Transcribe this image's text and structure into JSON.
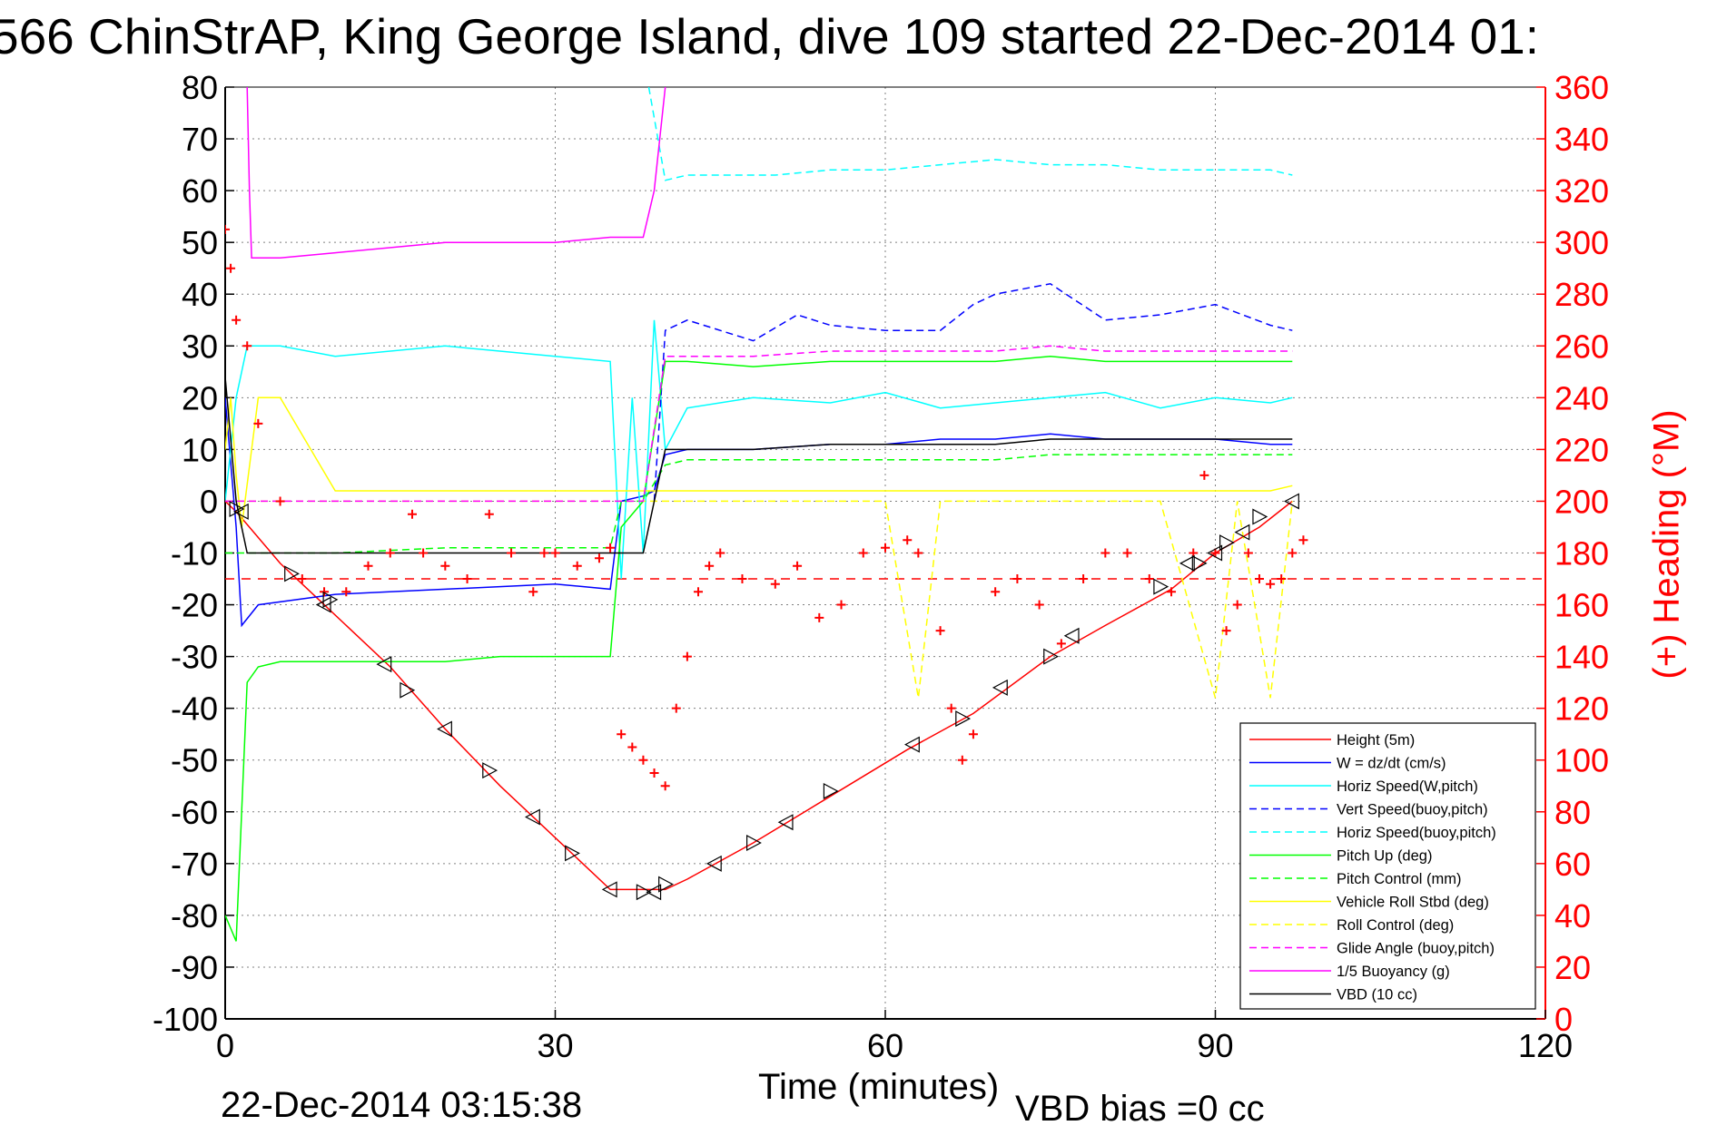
{
  "header": {
    "title": "566 ChinStrAP, King George Island, dive 109 started 22-Dec-2014 01:"
  },
  "footer": {
    "timestamp": "22-Dec-2014 03:15:38",
    "vbd_bias": "VBD bias =0 cc"
  },
  "colors": {
    "axis": "#000000",
    "right_axis": "#ff0000",
    "grid": "#808080"
  },
  "chart_data": {
    "type": "line",
    "xlabel": "Time (minutes)",
    "ylabel": "",
    "y2label": "(+) Heading (°M)",
    "xlim": [
      0,
      120
    ],
    "ylim": [
      -100,
      80
    ],
    "y2lim": [
      0,
      360
    ],
    "xticks": [
      0,
      30,
      60,
      90,
      120
    ],
    "yticks": [
      80,
      70,
      60,
      50,
      40,
      30,
      20,
      10,
      0,
      -10,
      -20,
      -30,
      -40,
      -50,
      -60,
      -70,
      -80,
      -90,
      -100
    ],
    "y2ticks": [
      360,
      340,
      320,
      300,
      280,
      260,
      240,
      220,
      200,
      180,
      160,
      140,
      120,
      100,
      80,
      60,
      40,
      20,
      0
    ],
    "grid": true,
    "legend_position": "bottom-right",
    "series": [
      {
        "name": "Height (5m)",
        "color": "#ff0000",
        "style": "solid",
        "x": [
          0,
          1,
          5,
          9,
          15,
          20,
          25,
          30,
          35,
          38,
          40,
          42,
          48,
          55,
          62,
          68,
          75,
          80,
          86,
          90,
          94,
          97
        ],
        "y": [
          0,
          -2,
          -12,
          -20,
          -32,
          -44,
          -55,
          -65,
          -75,
          -75,
          -75,
          -73,
          -66,
          -57,
          -48,
          -41,
          -30,
          -24,
          -17,
          -10,
          -5,
          0
        ]
      },
      {
        "name": "W = dz/dt (cm/s)",
        "color": "#0000ff",
        "style": "solid",
        "x": [
          0,
          1,
          1.5,
          3,
          10,
          20,
          30,
          35,
          36,
          38,
          39,
          40,
          42,
          48,
          55,
          60,
          65,
          70,
          75,
          80,
          85,
          90,
          95,
          97
        ],
        "y": [
          20,
          -5,
          -24,
          -20,
          -18,
          -17,
          -16,
          -17,
          0,
          1,
          2,
          9,
          10,
          10,
          11,
          11,
          12,
          12,
          13,
          12,
          12,
          12,
          11,
          11
        ]
      },
      {
        "name": "Horiz Speed(W,pitch)",
        "color": "#00ffff",
        "style": "solid",
        "x": [
          0,
          1,
          2,
          5,
          10,
          20,
          30,
          35,
          36,
          37,
          38,
          39,
          40,
          42,
          48,
          55,
          60,
          65,
          70,
          75,
          80,
          85,
          90,
          95,
          97
        ],
        "y": [
          0,
          20,
          30,
          30,
          28,
          30,
          28,
          27,
          -15,
          20,
          -10,
          35,
          10,
          18,
          20,
          19,
          21,
          18,
          19,
          20,
          21,
          18,
          20,
          19,
          20
        ]
      },
      {
        "name": "Vert Speed(buoy,pitch)",
        "color": "#0000ff",
        "style": "dashed",
        "x": [
          39,
          40,
          42,
          48,
          52,
          55,
          60,
          65,
          68,
          70,
          75,
          80,
          85,
          90,
          95,
          97
        ],
        "y": [
          0,
          33,
          35,
          31,
          36,
          34,
          33,
          33,
          38,
          40,
          42,
          35,
          36,
          38,
          34,
          33
        ]
      },
      {
        "name": "Horiz Speed(buoy,pitch)",
        "color": "#00ffff",
        "style": "dashed",
        "x": [
          38.5,
          40,
          42,
          50,
          55,
          60,
          65,
          70,
          75,
          80,
          85,
          90,
          95,
          97
        ],
        "y": [
          80,
          62,
          63,
          63,
          64,
          64,
          65,
          66,
          65,
          65,
          64,
          64,
          64,
          63
        ]
      },
      {
        "name": "Pitch Up (deg)",
        "color": "#00ff00",
        "style": "solid",
        "x": [
          0,
          1,
          2,
          3,
          5,
          10,
          15,
          20,
          25,
          30,
          35,
          36,
          38,
          40,
          42,
          48,
          55,
          60,
          65,
          70,
          75,
          80,
          85,
          90,
          95,
          97
        ],
        "y": [
          -80,
          -85,
          -35,
          -32,
          -31,
          -31,
          -31,
          -31,
          -30,
          -30,
          -30,
          -5,
          0,
          27,
          27,
          26,
          27,
          27,
          27,
          27,
          28,
          27,
          27,
          27,
          27,
          27
        ]
      },
      {
        "name": "Pitch Control (mm)",
        "color": "#00ff00",
        "style": "dashed",
        "x": [
          0,
          2,
          10,
          20,
          30,
          35,
          36,
          38,
          40,
          42,
          48,
          55,
          60,
          65,
          70,
          75,
          80,
          85,
          90,
          95,
          97
        ],
        "y": [
          -10,
          -10,
          -10,
          -9,
          -9,
          -9,
          0,
          0,
          7,
          8,
          8,
          8,
          8,
          8,
          8,
          9,
          9,
          9,
          9,
          9,
          9
        ]
      },
      {
        "name": "Vehicle Roll Stbd (deg)",
        "color": "#ffff00",
        "style": "solid",
        "x": [
          0,
          0.5,
          1,
          1.5,
          3,
          5,
          10,
          15,
          20,
          25,
          30,
          35,
          38,
          40,
          45,
          50,
          55,
          60,
          65,
          70,
          75,
          80,
          85,
          90,
          95,
          97
        ],
        "y": [
          10,
          20,
          5,
          -5,
          20,
          20,
          2,
          2,
          2,
          2,
          2,
          2,
          2,
          2,
          2,
          2,
          2,
          2,
          2,
          2,
          2,
          2,
          2,
          2,
          2,
          3
        ]
      },
      {
        "name": "Roll Control (deg)",
        "color": "#ffff00",
        "style": "dashed",
        "x": [
          0,
          2,
          5,
          10,
          20,
          30,
          35,
          38,
          40,
          45,
          50,
          55,
          60,
          63,
          65,
          70,
          75,
          80,
          85,
          90,
          92,
          95,
          97
        ],
        "y": [
          0,
          0,
          0,
          0,
          0,
          0,
          0,
          0,
          0,
          0,
          0,
          0,
          0,
          -38,
          0,
          0,
          0,
          0,
          0,
          -38,
          0,
          -38,
          0
        ]
      },
      {
        "name": "Glide Angle (buoy,pitch)",
        "color": "#ff00ff",
        "style": "dashed",
        "x": [
          0,
          10,
          20,
          30,
          35,
          38,
          40,
          42,
          48,
          55,
          60,
          65,
          70,
          75,
          80,
          85,
          90,
          95,
          97
        ],
        "y": [
          0,
          0,
          0,
          0,
          0,
          0,
          28,
          28,
          28,
          29,
          29,
          29,
          29,
          30,
          29,
          29,
          29,
          29,
          29
        ]
      },
      {
        "name": "1/5 Buoyancy (g)",
        "color": "#ff00ff",
        "style": "solid",
        "x": [
          2,
          2.2,
          2.4,
          5,
          10,
          20,
          30,
          35,
          38,
          39,
          40
        ],
        "y": [
          80,
          60,
          47,
          47,
          48,
          50,
          50,
          51,
          51,
          60,
          80
        ]
      },
      {
        "name": "VBD (10 cc)",
        "color": "#000000",
        "style": "solid",
        "x": [
          0,
          1,
          2,
          3,
          10,
          20,
          30,
          35,
          36,
          38,
          40,
          42,
          48,
          55,
          60,
          65,
          70,
          75,
          80,
          85,
          90,
          95,
          97
        ],
        "y": [
          24,
          0,
          -10,
          -10,
          -10,
          -10,
          -10,
          -10,
          -10,
          -10,
          10,
          10,
          10,
          11,
          11,
          11,
          11,
          12,
          12,
          12,
          12,
          12,
          12
        ]
      }
    ],
    "heading": {
      "name": "Heading",
      "color": "#ff0000",
      "marker": "+",
      "x": [
        0,
        0.5,
        1,
        2,
        3,
        5,
        7,
        9,
        11,
        13,
        15,
        17,
        18,
        20,
        22,
        24,
        26,
        28,
        29,
        30,
        32,
        34,
        35,
        36,
        37,
        38,
        39,
        40,
        41,
        42,
        43,
        44,
        45,
        47,
        50,
        52,
        54,
        56,
        58,
        60,
        62,
        63,
        65,
        66,
        67,
        68,
        70,
        72,
        74,
        76,
        78,
        80,
        82,
        84,
        86,
        88,
        89,
        90,
        91,
        92,
        93,
        94,
        95,
        96,
        97,
        98
      ],
      "y": [
        305,
        290,
        270,
        260,
        230,
        200,
        170,
        165,
        165,
        175,
        180,
        195,
        180,
        175,
        170,
        195,
        180,
        165,
        180,
        180,
        175,
        178,
        182,
        110,
        105,
        100,
        95,
        90,
        120,
        140,
        165,
        175,
        180,
        170,
        168,
        175,
        155,
        160,
        180,
        182,
        185,
        180,
        150,
        120,
        100,
        110,
        165,
        170,
        160,
        145,
        170,
        180,
        180,
        170,
        165,
        180,
        210,
        180,
        150,
        160,
        180,
        170,
        168,
        170,
        180,
        185
      ]
    },
    "heading_mean": 170,
    "triangles": {
      "x": [
        1,
        1.5,
        6,
        9,
        9.5,
        14.5,
        16.5,
        20,
        24,
        28,
        31.5,
        35,
        38,
        39,
        40,
        44.5,
        48,
        51,
        55,
        62.5,
        67,
        70.5,
        75,
        77,
        85,
        87.5,
        88.5,
        90,
        91,
        92.5,
        94,
        97
      ],
      "y": [
        -1.5,
        -2,
        -14,
        -20,
        -19,
        -31.5,
        -36.5,
        -44,
        -52,
        -61,
        -68,
        -75,
        -75.5,
        -75.5,
        -74,
        -70,
        -66,
        -62,
        -56,
        -47,
        -42,
        -36,
        -30,
        -26,
        -16.5,
        -12,
        -12,
        -10,
        -8,
        -6,
        -3,
        0
      ]
    },
    "legend": [
      "Height (5m)",
      "W = dz/dt (cm/s)",
      "Horiz Speed(W,pitch)",
      "Vert Speed(buoy,pitch)",
      "Horiz Speed(buoy,pitch)",
      "Pitch Up (deg)",
      "Pitch Control (mm)",
      "Vehicle Roll Stbd (deg)",
      "Roll Control (deg)",
      "Glide Angle (buoy,pitch)",
      "1/5 Buoyancy (g)",
      "VBD (10 cc)"
    ]
  }
}
